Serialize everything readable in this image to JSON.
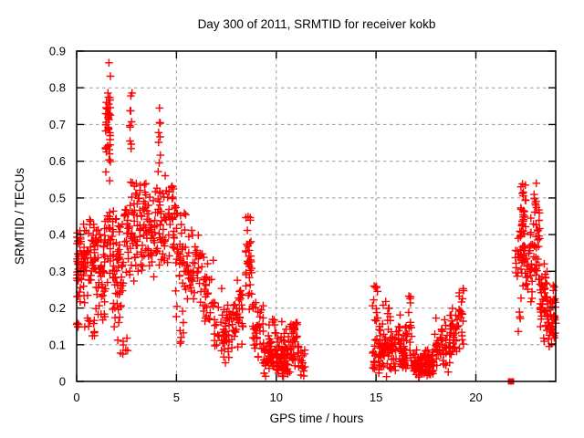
{
  "page": {
    "background": "#ffffff"
  },
  "chart_data": {
    "type": "scatter",
    "title": "Day 300 of 2011, SRMTID for receiver kokb",
    "xlabel": "GPS time / hours",
    "ylabel": "SRMTID / TECUs",
    "xlim": [
      0,
      24
    ],
    "ylim": [
      0,
      0.9
    ],
    "xticks": [
      0,
      5,
      10,
      15,
      20
    ],
    "xtick_labels": [
      "0",
      "5",
      "10",
      "15",
      "20"
    ],
    "yticks": [
      0,
      0.1,
      0.2,
      0.3,
      0.4,
      0.5,
      0.6,
      0.7,
      0.8,
      0.9
    ],
    "ytick_labels": [
      "0",
      "0.1",
      "0.2",
      "0.3",
      "0.4",
      "0.5",
      "0.6",
      "0.7",
      "0.8",
      "0.9"
    ],
    "grid": "dashed both axes at major ticks",
    "grid_color": "#999999",
    "frame_color": "#000000",
    "text_color": "#000000",
    "legend": "none",
    "marker_color": "#ff0000",
    "marker": "plus",
    "series": [
      {
        "name": "SRMTID",
        "marker": "plus",
        "color": "#ff0000",
        "seed": 42,
        "cluster_format": [
          "x_start_hr",
          "x_end_hr",
          "y_min_TECU",
          "y_max_TECU",
          "count",
          "center_bias"
        ],
        "clusters": [
          [
            0.0,
            0.12,
            0.14,
            0.44,
            22,
            0
          ],
          [
            0.05,
            1.0,
            0.2,
            0.47,
            85,
            1
          ],
          [
            0.1,
            1.0,
            0.09,
            0.2,
            12,
            0
          ],
          [
            1.0,
            1.45,
            0.15,
            0.45,
            40,
            1
          ],
          [
            1.45,
            1.7,
            0.5,
            0.875,
            45,
            1
          ],
          [
            1.4,
            1.85,
            0.25,
            0.52,
            30,
            1
          ],
          [
            1.8,
            2.35,
            0.12,
            0.46,
            55,
            1
          ],
          [
            1.9,
            2.6,
            0.07,
            0.14,
            8,
            0
          ],
          [
            2.6,
            2.78,
            0.62,
            0.8,
            10,
            0
          ],
          [
            2.35,
            3.2,
            0.25,
            0.57,
            70,
            1
          ],
          [
            3.2,
            4.0,
            0.27,
            0.56,
            60,
            1
          ],
          [
            4.05,
            4.22,
            0.55,
            0.76,
            9,
            0
          ],
          [
            4.0,
            4.85,
            0.3,
            0.6,
            60,
            1
          ],
          [
            4.85,
            5.5,
            0.22,
            0.5,
            45,
            1
          ],
          [
            4.9,
            5.4,
            0.1,
            0.22,
            9,
            0
          ],
          [
            5.5,
            6.3,
            0.18,
            0.42,
            45,
            1
          ],
          [
            6.3,
            6.85,
            0.14,
            0.35,
            30,
            1
          ],
          [
            6.9,
            7.65,
            0.04,
            0.26,
            48,
            1
          ],
          [
            7.7,
            8.35,
            0.07,
            0.3,
            40,
            1
          ],
          [
            8.45,
            8.8,
            0.18,
            0.47,
            35,
            1
          ],
          [
            8.8,
            9.35,
            0.04,
            0.25,
            35,
            1
          ],
          [
            9.35,
            10.6,
            0.005,
            0.13,
            115,
            1
          ],
          [
            9.6,
            10.5,
            0.12,
            0.17,
            10,
            0
          ],
          [
            10.6,
            11.15,
            0.005,
            0.2,
            40,
            1
          ],
          [
            11.1,
            11.45,
            0.005,
            0.1,
            15,
            1
          ],
          [
            14.8,
            15.1,
            0.16,
            0.26,
            12,
            0
          ],
          [
            14.8,
            15.1,
            0.01,
            0.12,
            14,
            0
          ],
          [
            15.1,
            16.0,
            0.005,
            0.16,
            75,
            1
          ],
          [
            15.3,
            15.9,
            0.16,
            0.22,
            8,
            0
          ],
          [
            16.0,
            16.6,
            0.01,
            0.19,
            45,
            1
          ],
          [
            16.6,
            16.8,
            0.05,
            0.25,
            14,
            0
          ],
          [
            16.8,
            17.9,
            0.003,
            0.09,
            95,
            1
          ],
          [
            17.9,
            18.7,
            0.01,
            0.18,
            55,
            1
          ],
          [
            18.7,
            19.1,
            0.05,
            0.22,
            30,
            1
          ],
          [
            19.1,
            19.4,
            0.08,
            0.29,
            20,
            1
          ],
          [
            21.95,
            22.25,
            0.27,
            0.46,
            14,
            1
          ],
          [
            22.05,
            22.25,
            0.12,
            0.2,
            4,
            0
          ],
          [
            22.25,
            22.5,
            0.28,
            0.58,
            30,
            1
          ],
          [
            22.2,
            22.85,
            0.2,
            0.46,
            45,
            1
          ],
          [
            22.85,
            23.2,
            0.22,
            0.55,
            35,
            1
          ],
          [
            23.2,
            23.6,
            0.1,
            0.35,
            42,
            1
          ],
          [
            23.55,
            24.0,
            0.08,
            0.27,
            48,
            1
          ]
        ]
      }
    ],
    "special_points": [
      {
        "x": 21.76,
        "y": 0.0,
        "marker": "filled-square",
        "color": "#ff0000"
      }
    ]
  }
}
